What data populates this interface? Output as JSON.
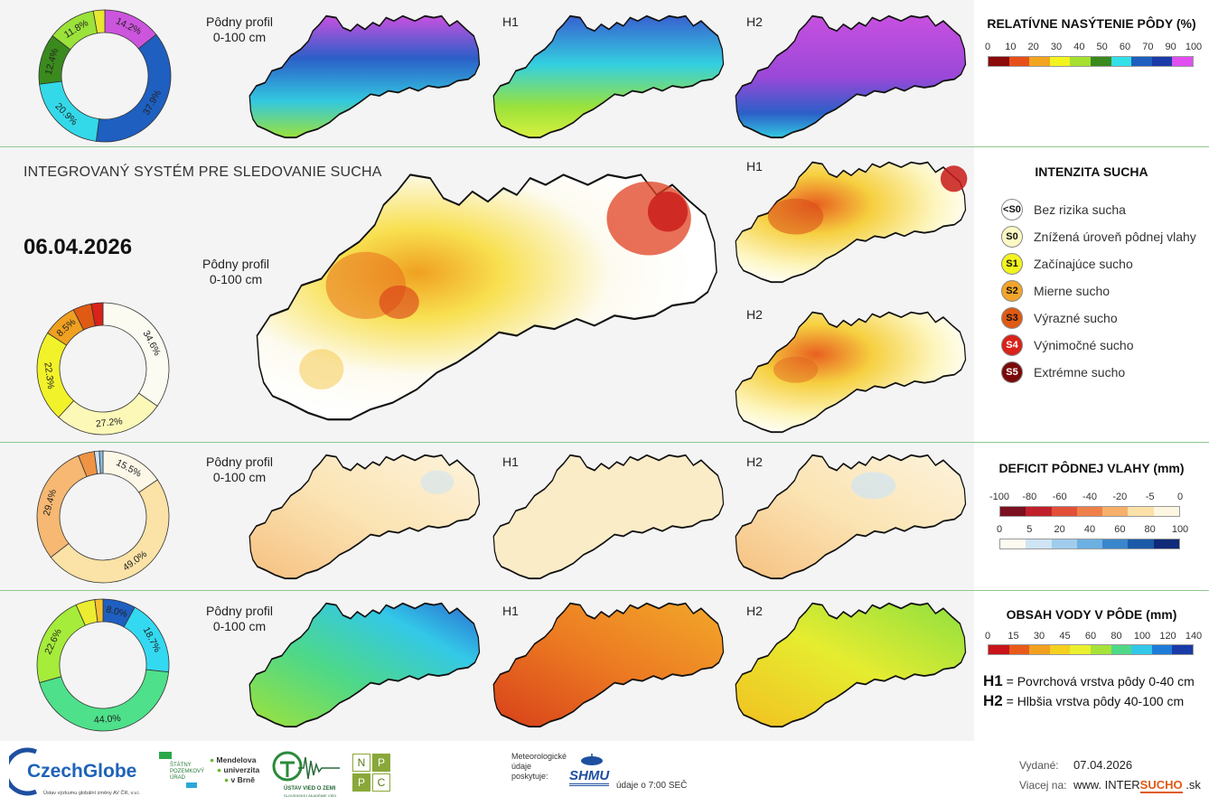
{
  "header": {
    "system_title": "INTEGROVANÝ SYSTÉM PRE SLEDOVANIE SUCHA",
    "date": "06.04.2026"
  },
  "rows": {
    "saturation": {
      "labels": {
        "profile_line1": "Pôdny profil",
        "profile_line2": "0-100 cm",
        "h1": "H1",
        "h2": "H2"
      },
      "donut": [
        {
          "label": "14.2%",
          "value": 14.2,
          "color": "#cc55dd"
        },
        {
          "label": "37.9%",
          "value": 37.9,
          "color": "#1e5fc0"
        },
        {
          "label": "20.9%",
          "value": 20.9,
          "color": "#33d9e8"
        },
        {
          "label": "12.4%",
          "value": 12.4,
          "color": "#3a8a1e"
        },
        {
          "label": "11.8%",
          "value": 11.8,
          "color": "#9be23a"
        },
        {
          "label": "",
          "value": 2.8,
          "color": "#e8e830"
        }
      ]
    },
    "intensity": {
      "labels": {
        "profile_line1": "Pôdny profil",
        "profile_line2": "0-100 cm",
        "h1": "H1",
        "h2": "H2"
      },
      "donut": [
        {
          "label": "34.6%",
          "value": 34.6,
          "color": "#fbfbf2"
        },
        {
          "label": "27.2%",
          "value": 27.2,
          "color": "#fbf8b8"
        },
        {
          "label": "22.3%",
          "value": 22.3,
          "color": "#f2f22a"
        },
        {
          "label": "8.5%",
          "value": 8.5,
          "color": "#f0a020"
        },
        {
          "label": "",
          "value": 4.5,
          "color": "#e05a14"
        },
        {
          "label": "",
          "value": 2.9,
          "color": "#d8221a"
        }
      ]
    },
    "deficit": {
      "labels": {
        "profile_line1": "Pôdny profil",
        "profile_line2": "0-100 cm",
        "h1": "H1",
        "h2": "H2"
      },
      "donut": [
        {
          "label": "15.5%",
          "value": 15.5,
          "color": "#fdf7e8"
        },
        {
          "label": "49.0%",
          "value": 49.0,
          "color": "#fbe2a6"
        },
        {
          "label": "29.4%",
          "value": 29.4,
          "color": "#f6b872"
        },
        {
          "label": "",
          "value": 4.0,
          "color": "#ee9444"
        },
        {
          "label": "",
          "value": 1.2,
          "color": "#cfe4f4"
        },
        {
          "label": "",
          "value": 0.9,
          "color": "#88bfe8"
        }
      ]
    },
    "water": {
      "labels": {
        "profile_line1": "Pôdny profil",
        "profile_line2": "0-100 cm",
        "h1": "H1",
        "h2": "H2"
      },
      "donut": [
        {
          "label": "8.0%",
          "value": 8.0,
          "color": "#1e5fc0"
        },
        {
          "label": "18.7%",
          "value": 18.7,
          "color": "#33d9f0"
        },
        {
          "label": "44.0%",
          "value": 44.0,
          "color": "#4ee08a"
        },
        {
          "label": "22.6%",
          "value": 22.6,
          "color": "#a6ec3a"
        },
        {
          "label": "",
          "value": 4.7,
          "color": "#ecec30"
        },
        {
          "label": "",
          "value": 2.0,
          "color": "#f6c030"
        }
      ]
    }
  },
  "legends": {
    "saturation": {
      "title": "RELATÍVNE NASÝTENIE PÔDY (%)",
      "ticks": [
        "0",
        "10",
        "20",
        "30",
        "40",
        "50",
        "60",
        "70",
        "90",
        "100"
      ],
      "colors": [
        "#8b0a0a",
        "#e8501a",
        "#f2a520",
        "#f3f320",
        "#a6e030",
        "#3a8a1e",
        "#33e0e8",
        "#1e5fc0",
        "#1a3aa8",
        "#e050f0"
      ]
    },
    "intensity": {
      "title": "INTENZITA SUCHA",
      "items": [
        {
          "code": "<S0",
          "label": "Bez rizika sucha",
          "color": "#ffffff",
          "text_color": "#111111"
        },
        {
          "code": "S0",
          "label": "Znížená úroveň pôdnej vlahy",
          "color": "#fdf9c4",
          "text_color": "#111111"
        },
        {
          "code": "S1",
          "label": "Začínajúce sucho",
          "color": "#f3f320",
          "text_color": "#111111"
        },
        {
          "code": "S2",
          "label": "Mierne sucho",
          "color": "#f2a52a",
          "text_color": "#111111"
        },
        {
          "code": "S3",
          "label": "Výrazné sucho",
          "color": "#e05a14",
          "text_color": "#111111"
        },
        {
          "code": "S4",
          "label": "Výnimočné sucho",
          "color": "#d8221a",
          "text_color": "#ffffff"
        },
        {
          "code": "S5",
          "label": "Extrémne sucho",
          "color": "#7a0a0a",
          "text_color": "#ffffff"
        }
      ]
    },
    "deficit": {
      "title": "DEFICIT PÔDNEJ VLAHY (mm)",
      "neg_ticks": [
        "-100",
        "-80",
        "-60",
        "-40",
        "-20",
        "-5",
        "0"
      ],
      "neg_colors": [
        "#7a1020",
        "#c0202a",
        "#e2503a",
        "#f0804a",
        "#f6b06a",
        "#fbe0a8",
        "#fdf6e0"
      ],
      "pos_ticks": [
        "0",
        "5",
        "20",
        "40",
        "60",
        "80",
        "100"
      ],
      "pos_colors": [
        "#fdfbf0",
        "#cfe4f4",
        "#a0cdee",
        "#6cb0e2",
        "#3a86cc",
        "#1a5aa8",
        "#0e2a78"
      ]
    },
    "water": {
      "title": "OBSAH VODY V PÔDE (mm)",
      "ticks": [
        "0",
        "15",
        "30",
        "45",
        "60",
        "80",
        "100",
        "120",
        "140"
      ],
      "colors": [
        "#c8141a",
        "#e85a1a",
        "#f2a020",
        "#f6d020",
        "#eaf030",
        "#a6e23a",
        "#4ed888",
        "#33c8e8",
        "#1e7cd8",
        "#1a3aa8"
      ],
      "h1_label": "H1",
      "h1_desc": "= Povrchová vrstva pôdy 0-40 cm",
      "h2_label": "H2",
      "h2_desc": "= Hlbšia vrstva pôdy 40-100 cm"
    }
  },
  "footer": {
    "czechglobe": "CzechGlobe",
    "czechglobe_sub": "Ústav výzkumu globální změny AV ČR, v.v.i.",
    "spu_line1": "ŠTÁTNY",
    "spu_line2": "POZEMKOVÝ",
    "spu_line3": "ÚRAD",
    "mendel_line1": "Mendelova",
    "mendel_line2": "univerzita",
    "mendel_line3": "v Brně",
    "uvz_line1": "ÚSTAV VIED O ZEMI",
    "uvz_line2": "SLOVENSKEJ AKADÉMIE VIED",
    "nppc": [
      "N",
      "P",
      "P",
      "C"
    ],
    "meteo_line1": "Meteorologické",
    "meteo_line2": "údaje",
    "meteo_line3": "poskytuje:",
    "shmu": "SHMU",
    "data_time": "údaje o 7:00 SEČ",
    "issued_label": "Vydané:",
    "issued_date": "07.04.2026",
    "more_label": "Viacej na:",
    "website_prefix": "www. INTER",
    "website_mid": "SUCHO",
    "website_suffix": " .sk"
  }
}
